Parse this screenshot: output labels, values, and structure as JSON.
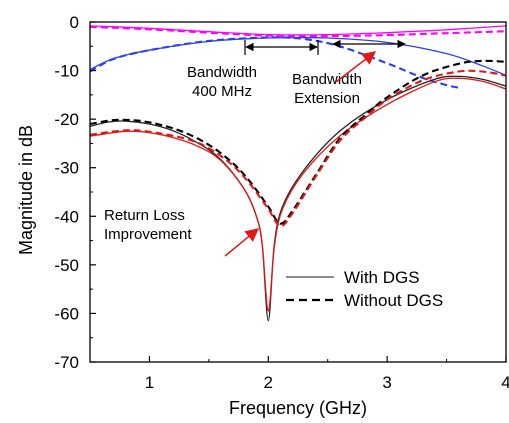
{
  "chart_data": {
    "type": "line",
    "title": "",
    "xlabel": "Frequency (GHz)",
    "ylabel": "Magnitude in dB",
    "xlim": [
      0.5,
      4.0
    ],
    "ylim": [
      -70,
      0
    ],
    "xticks": [
      1,
      2,
      3,
      4
    ],
    "yticks": [
      0,
      -10,
      -20,
      -30,
      -40,
      -50,
      -60,
      -70
    ],
    "grid": false,
    "legend": {
      "placement": "bottom-right",
      "entries": [
        {
          "label": "With DGS",
          "style": "solid",
          "color": "#444444"
        },
        {
          "label": "Without DGS",
          "style": "dashed",
          "color": "#000000"
        }
      ]
    },
    "series": [
      {
        "group": "With DGS",
        "color": "#ff00ff",
        "dash": false,
        "points": [
          [
            0.5,
            -0.8
          ],
          [
            1.0,
            -1.3
          ],
          [
            1.5,
            -2.0
          ],
          [
            2.0,
            -2.6
          ],
          [
            2.5,
            -2.6
          ],
          [
            3.0,
            -2.2
          ],
          [
            3.5,
            -1.6
          ],
          [
            4.0,
            -0.8
          ]
        ]
      },
      {
        "group": "Without DGS",
        "color": "#ff00ff",
        "dash": true,
        "points": [
          [
            0.5,
            -1.0
          ],
          [
            1.0,
            -1.5
          ],
          [
            1.5,
            -2.2
          ],
          [
            2.0,
            -2.8
          ],
          [
            2.5,
            -2.9
          ],
          [
            3.0,
            -2.7
          ],
          [
            3.5,
            -2.3
          ],
          [
            4.0,
            -1.9
          ]
        ]
      },
      {
        "group": "With DGS",
        "color": "#2b3ff0",
        "dash": false,
        "points": [
          [
            0.5,
            -9.8
          ],
          [
            0.7,
            -7.5
          ],
          [
            1.0,
            -5.8
          ],
          [
            1.5,
            -4.0
          ],
          [
            2.0,
            -3.3
          ],
          [
            2.5,
            -3.3
          ],
          [
            3.0,
            -4.2
          ],
          [
            3.5,
            -6.5
          ],
          [
            3.8,
            -9.0
          ],
          [
            4.0,
            -11.0
          ]
        ]
      },
      {
        "group": "Without DGS",
        "color": "#2b3ff0",
        "dash": true,
        "points": [
          [
            0.5,
            -10.2
          ],
          [
            0.7,
            -7.6
          ],
          [
            1.0,
            -5.8
          ],
          [
            1.5,
            -3.9
          ],
          [
            2.0,
            -3.2
          ],
          [
            2.3,
            -3.5
          ],
          [
            2.6,
            -5.0
          ],
          [
            3.0,
            -8.5
          ],
          [
            3.3,
            -11.5
          ],
          [
            3.5,
            -13.0
          ],
          [
            3.6,
            -13.5
          ]
        ]
      },
      {
        "group": "With DGS",
        "color": "#222222",
        "dash": false,
        "points": [
          [
            0.5,
            -21.5
          ],
          [
            0.65,
            -20.6
          ],
          [
            0.8,
            -20.4
          ],
          [
            1.0,
            -21.0
          ],
          [
            1.2,
            -22.4
          ],
          [
            1.4,
            -24.8
          ],
          [
            1.6,
            -28.3
          ],
          [
            1.8,
            -34.5
          ],
          [
            1.9,
            -40.0
          ],
          [
            1.95,
            -46.0
          ],
          [
            2.0,
            -61.5
          ],
          [
            2.05,
            -46.0
          ],
          [
            2.12,
            -38.0
          ],
          [
            2.3,
            -30.5
          ],
          [
            2.6,
            -22.5
          ],
          [
            3.0,
            -16.0
          ],
          [
            3.4,
            -11.8
          ],
          [
            3.6,
            -11.2
          ],
          [
            3.8,
            -11.8
          ],
          [
            4.0,
            -13.2
          ]
        ]
      },
      {
        "group": "With DGS",
        "color": "#e01818",
        "dash": false,
        "points": [
          [
            0.5,
            -23.5
          ],
          [
            0.8,
            -22.5
          ],
          [
            1.0,
            -22.8
          ],
          [
            1.2,
            -23.8
          ],
          [
            1.4,
            -25.5
          ],
          [
            1.6,
            -28.5
          ],
          [
            1.8,
            -34.5
          ],
          [
            1.9,
            -40.0
          ],
          [
            1.95,
            -46.0
          ],
          [
            2.0,
            -59.5
          ],
          [
            2.05,
            -46.5
          ],
          [
            2.12,
            -38.5
          ],
          [
            2.3,
            -31.0
          ],
          [
            2.6,
            -23.5
          ],
          [
            3.0,
            -17.0
          ],
          [
            3.4,
            -12.3
          ],
          [
            3.6,
            -11.6
          ],
          [
            3.8,
            -12.2
          ],
          [
            4.0,
            -13.8
          ]
        ]
      },
      {
        "group": "Without DGS",
        "color": "#000000",
        "dash": true,
        "points": [
          [
            0.5,
            -21.0
          ],
          [
            0.7,
            -20.2
          ],
          [
            0.9,
            -20.3
          ],
          [
            1.1,
            -21.2
          ],
          [
            1.3,
            -22.8
          ],
          [
            1.5,
            -25.3
          ],
          [
            1.7,
            -29.0
          ],
          [
            1.85,
            -33.0
          ],
          [
            2.0,
            -38.0
          ],
          [
            2.1,
            -41.5
          ],
          [
            2.2,
            -39.0
          ],
          [
            2.4,
            -31.5
          ],
          [
            2.6,
            -24.0
          ],
          [
            2.8,
            -19.5
          ],
          [
            3.0,
            -15.5
          ],
          [
            3.3,
            -11.0
          ],
          [
            3.6,
            -8.6
          ],
          [
            3.8,
            -8.0
          ],
          [
            4.0,
            -8.2
          ]
        ]
      },
      {
        "group": "Without DGS",
        "color": "#e01818",
        "dash": true,
        "points": [
          [
            0.5,
            -23.2
          ],
          [
            0.8,
            -22.3
          ],
          [
            1.0,
            -22.6
          ],
          [
            1.3,
            -24.0
          ],
          [
            1.5,
            -26.0
          ],
          [
            1.7,
            -29.5
          ],
          [
            1.85,
            -33.5
          ],
          [
            2.0,
            -38.5
          ],
          [
            2.1,
            -42.0
          ],
          [
            2.2,
            -39.5
          ],
          [
            2.4,
            -31.8
          ],
          [
            2.6,
            -24.5
          ],
          [
            2.8,
            -20.0
          ],
          [
            3.0,
            -16.0
          ],
          [
            3.3,
            -12.0
          ],
          [
            3.6,
            -10.2
          ],
          [
            3.8,
            -10.2
          ],
          [
            4.0,
            -11.0
          ]
        ]
      }
    ],
    "annotations": [
      {
        "id": "bandwidth",
        "lines": [
          "Bandwidth",
          "400 MHz"
        ]
      },
      {
        "id": "extension",
        "lines": [
          "Bandwidth",
          "Extension"
        ]
      },
      {
        "id": "return_loss",
        "lines": [
          "Return Loss",
          "Improvement"
        ]
      }
    ]
  }
}
